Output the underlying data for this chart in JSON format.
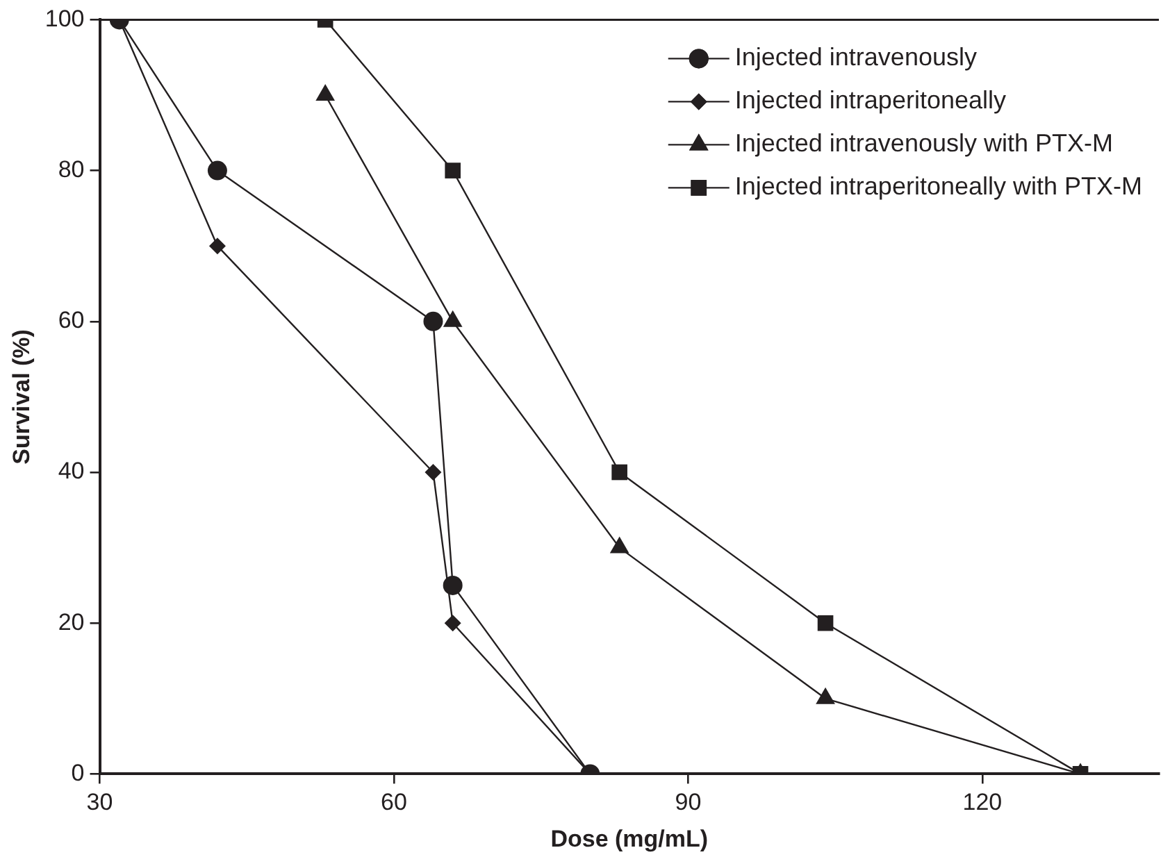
{
  "chart_data": {
    "type": "line",
    "xlabel": "Dose (mg/mL)",
    "ylabel": "Survival (%)",
    "xlim": [
      30,
      138
    ],
    "xticks": [
      30,
      60,
      90,
      120
    ],
    "ylim": [
      0,
      100
    ],
    "yticks": [
      0,
      20,
      40,
      60,
      80,
      100
    ],
    "grid": false,
    "legend": "top right",
    "line_style": "solid",
    "series": [
      {
        "name": "Injected intravenously",
        "color": "#231f20",
        "marker": "circle",
        "x": [
          32,
          42,
          64,
          66,
          80
        ],
        "values": [
          100,
          80,
          60,
          25,
          0
        ]
      },
      {
        "name": "Injected intraperitoneally",
        "color": "#231f20",
        "marker": "diamond",
        "x": [
          32,
          42,
          64,
          66,
          80
        ],
        "values": [
          100,
          70,
          40,
          20,
          0
        ]
      },
      {
        "name": "Injected intravenously with PTX-M",
        "color": "#231f20",
        "marker": "triangle",
        "x": [
          53,
          66,
          83,
          104,
          130
        ],
        "values": [
          90,
          60,
          30,
          10,
          0
        ]
      },
      {
        "name": "Injected intraperitoneally with PTX-M",
        "color": "#231f20",
        "marker": "square",
        "x": [
          53,
          66,
          83,
          104,
          130
        ],
        "values": [
          100,
          80,
          40,
          20,
          0
        ]
      }
    ]
  }
}
